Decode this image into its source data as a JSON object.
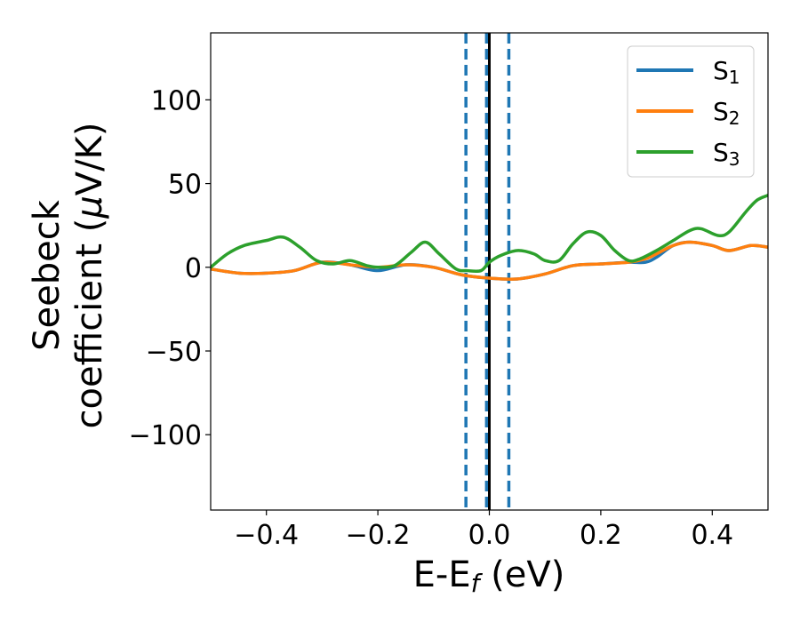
{
  "chart_data": {
    "type": "line",
    "xlabel": {
      "main": "E-E",
      "sub": "f",
      "unit": " (eV)"
    },
    "ylabel": {
      "line1": "Seebeck",
      "line2_prefix": "coefficient  (",
      "mu": "μ",
      "line2_suffix": "V/K)"
    },
    "xlim": [
      -0.5,
      0.5
    ],
    "ylim": [
      -145,
      140
    ],
    "x_ticks": [
      -0.4,
      -0.2,
      0.0,
      0.2,
      0.4
    ],
    "x_tick_labels": [
      "−0.4",
      "−0.2",
      "0.0",
      "0.2",
      "0.4"
    ],
    "y_ticks": [
      -100,
      -50,
      0,
      50,
      100
    ],
    "y_tick_labels": [
      "−100",
      "−50",
      "0",
      "50",
      "100"
    ],
    "grid": false,
    "legend_position": "top-right",
    "vertical_lines": [
      {
        "x": -0.042,
        "style": "dashed",
        "color": "#1f77b4"
      },
      {
        "x": -0.005,
        "style": "dashed",
        "color": "#1f77b4"
      },
      {
        "x": 0.0,
        "style": "solid",
        "color": "#000000"
      },
      {
        "x": 0.035,
        "style": "dashed",
        "color": "#1f77b4"
      }
    ],
    "series": [
      {
        "name": "S",
        "subscript": "1",
        "color": "#1f77b4",
        "x": [
          -0.5,
          -0.45,
          -0.4,
          -0.35,
          -0.3,
          -0.25,
          -0.2,
          -0.15,
          -0.1,
          -0.05,
          0.0,
          0.05,
          0.1,
          0.15,
          0.2,
          0.25,
          0.28,
          0.3,
          0.33,
          0.36,
          0.4,
          0.43,
          0.47,
          0.5
        ],
        "y": [
          -1,
          -3.5,
          -3.5,
          -2,
          3,
          1.5,
          -2,
          1.5,
          0,
          -4.5,
          -6.5,
          -7,
          -4,
          1,
          2,
          3,
          3,
          6,
          13,
          15,
          13,
          10,
          13,
          12
        ]
      },
      {
        "name": "S",
        "subscript": "2",
        "color": "#ff7f0e",
        "x": [
          -0.5,
          -0.45,
          -0.4,
          -0.35,
          -0.3,
          -0.25,
          -0.2,
          -0.15,
          -0.1,
          -0.05,
          0.0,
          0.05,
          0.1,
          0.15,
          0.2,
          0.25,
          0.28,
          0.3,
          0.33,
          0.36,
          0.4,
          0.43,
          0.47,
          0.5
        ],
        "y": [
          -1,
          -3.5,
          -3.5,
          -2,
          3,
          1.5,
          0,
          1.5,
          0,
          -4.5,
          -6.5,
          -7,
          -4,
          1,
          2,
          3,
          5,
          8,
          13,
          15,
          13,
          10,
          13,
          12
        ]
      },
      {
        "name": "S",
        "subscript": "3",
        "color": "#2ca02c",
        "x": [
          -0.5,
          -0.47,
          -0.44,
          -0.4,
          -0.37,
          -0.34,
          -0.31,
          -0.28,
          -0.25,
          -0.22,
          -0.2,
          -0.17,
          -0.14,
          -0.115,
          -0.09,
          -0.06,
          -0.04,
          -0.015,
          0.0,
          0.02,
          0.05,
          0.08,
          0.1,
          0.125,
          0.15,
          0.175,
          0.2,
          0.225,
          0.25,
          0.27,
          0.3,
          0.33,
          0.36,
          0.38,
          0.41,
          0.43,
          0.46,
          0.48,
          0.5
        ],
        "y": [
          0,
          8,
          13,
          16,
          18,
          12,
          4,
          2,
          4,
          1,
          0,
          1,
          9,
          15,
          8,
          -1,
          -2,
          -2,
          3,
          7,
          10,
          8,
          4,
          4,
          14,
          21,
          19,
          10,
          4,
          5,
          10,
          16,
          22,
          23,
          19,
          21,
          33,
          40,
          43
        ]
      }
    ]
  }
}
